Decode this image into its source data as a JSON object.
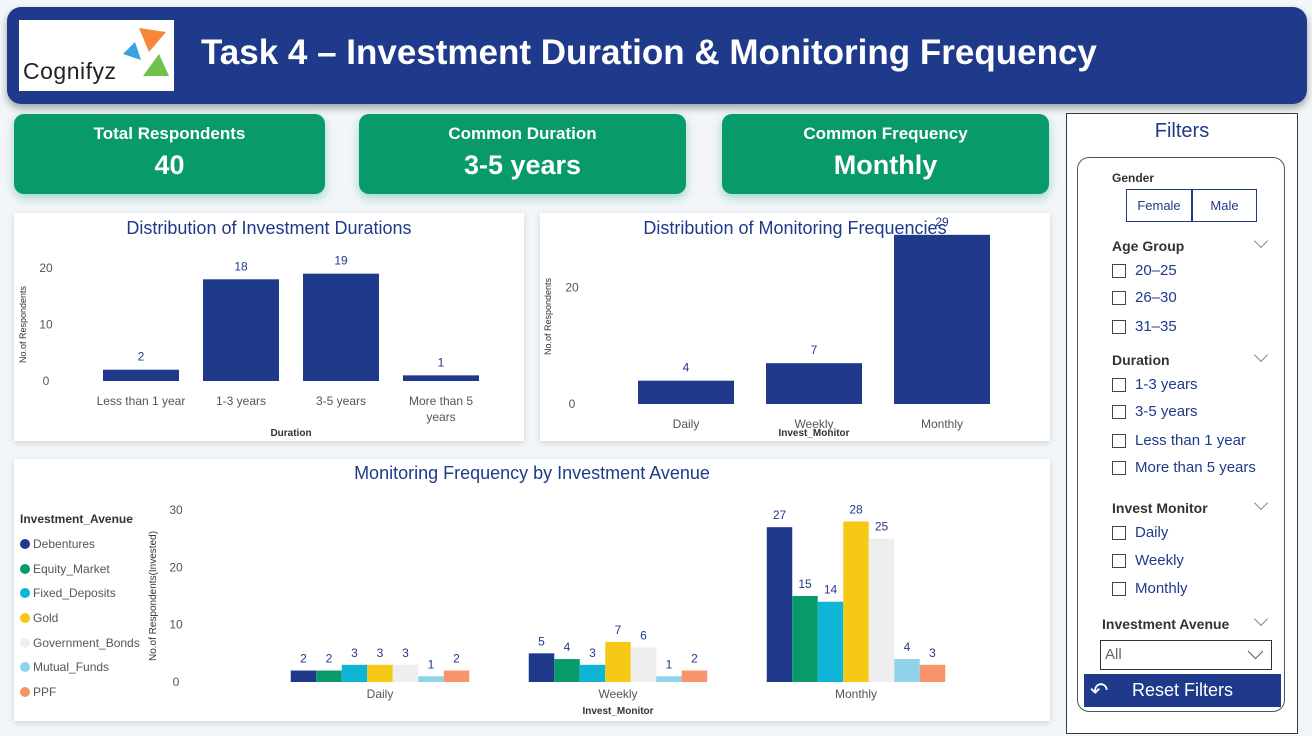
{
  "header": {
    "logo_text": "Cognifyz",
    "title": "Task 4 – Investment Duration & Monitoring Frequency"
  },
  "kpis": [
    {
      "label": "Total Respondents",
      "value": "40"
    },
    {
      "label": "Common Duration",
      "value": "3-5 years"
    },
    {
      "label": "Common Frequency",
      "value": "Monthly"
    }
  ],
  "colors": {
    "primary": "#1f3a8a",
    "kpi_green": "#089a6a",
    "series": [
      "#1f3a8a",
      "#089a6a",
      "#0fb5d6",
      "#f5c915",
      "#eeeeee",
      "#8fd3ea",
      "#f7956a"
    ]
  },
  "chart_data": [
    {
      "type": "bar",
      "title": "Distribution of Investment Durations",
      "categories": [
        "Less than 1 year",
        "1-3 years",
        "3-5 years",
        "More than 5 years"
      ],
      "values": [
        2,
        18,
        19,
        1
      ],
      "xlabel": "Duration",
      "ylabel": "No.of Respondents",
      "yticks": [
        0,
        10,
        20
      ],
      "ylim": [
        0,
        20
      ]
    },
    {
      "type": "bar",
      "title": "Distribution of Monitoring Frequencies",
      "categories": [
        "Daily",
        "Weekly",
        "Monthly"
      ],
      "values": [
        4,
        7,
        29
      ],
      "xlabel": "Invest_Monitor",
      "ylabel": "No.of Respondents",
      "yticks": [
        0,
        20
      ],
      "ylim": [
        0,
        30
      ]
    },
    {
      "type": "bar",
      "title": "Monitoring Frequency by Investment Avenue",
      "categories": [
        "Daily",
        "Weekly",
        "Monthly"
      ],
      "legend_title": "Investment_Avenue",
      "series": [
        {
          "name": "Debentures",
          "values": [
            2,
            5,
            27
          ]
        },
        {
          "name": "Equity_Market",
          "values": [
            2,
            4,
            15
          ]
        },
        {
          "name": "Fixed_Deposits",
          "values": [
            3,
            3,
            14
          ]
        },
        {
          "name": "Gold",
          "values": [
            3,
            7,
            28
          ]
        },
        {
          "name": "Government_Bonds",
          "values": [
            3,
            6,
            25
          ]
        },
        {
          "name": "Mutual_Funds",
          "values": [
            1,
            1,
            4
          ]
        },
        {
          "name": "PPF",
          "values": [
            2,
            2,
            3
          ]
        }
      ],
      "xlabel": "Invest_Monitor",
      "ylabel": "No.of Respondents(Invested)",
      "yticks": [
        0,
        10,
        20,
        30
      ],
      "ylim": [
        0,
        30
      ]
    }
  ],
  "filters": {
    "title": "Filters",
    "gender": {
      "label": "Gender",
      "options": [
        "Female",
        "Male"
      ]
    },
    "age_group": {
      "label": "Age Group",
      "options": [
        "20–25",
        "26–30",
        "31–35"
      ]
    },
    "duration": {
      "label": "Duration",
      "options": [
        "1-3 years",
        "3-5 years",
        "Less than 1 year",
        "More than 5 years"
      ]
    },
    "invest_monitor": {
      "label": "Invest Monitor",
      "options": [
        "Daily",
        "Weekly",
        "Monthly"
      ]
    },
    "investment_avenue": {
      "label": "Investment Avenue",
      "selected": "All"
    },
    "reset_label": "Reset Filters"
  }
}
